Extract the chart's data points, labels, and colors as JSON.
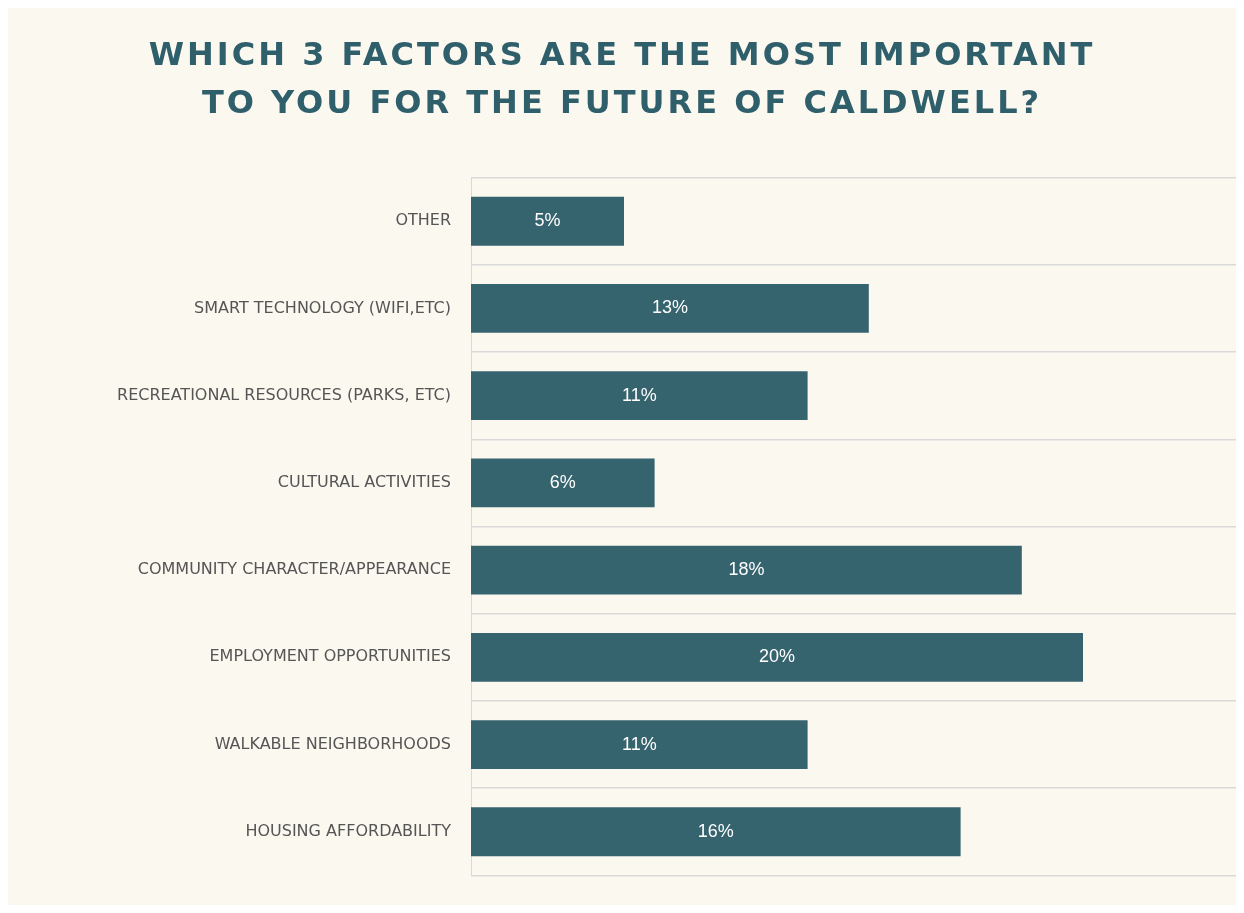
{
  "chart_data": {
    "type": "bar",
    "orientation": "horizontal",
    "title": "WHICH 3 FACTORS ARE THE MOST IMPORTANT TO YOU FOR THE FUTURE OF CALDWELL?",
    "categories": [
      "OTHER",
      "SMART TECHNOLOGY (WIFI,ETC)",
      "RECREATIONAL RESOURCES (PARKS, ETC)",
      "CULTURAL ACTIVITIES",
      "COMMUNITY CHARACTER/APPEARANCE",
      "EMPLOYMENT OPPORTUNITIES",
      "WALKABLE NEIGHBORHOODS",
      "HOUSING AFFORDABILITY"
    ],
    "values": [
      5,
      13,
      11,
      6,
      18,
      20,
      11,
      16
    ],
    "value_labels": [
      "5%",
      "13%",
      "11%",
      "6%",
      "18%",
      "20%",
      "11%",
      "16%"
    ],
    "color": "#35636e",
    "xlim": [
      0,
      25
    ],
    "grid": "y",
    "legend": false,
    "tick_labels": "y"
  }
}
